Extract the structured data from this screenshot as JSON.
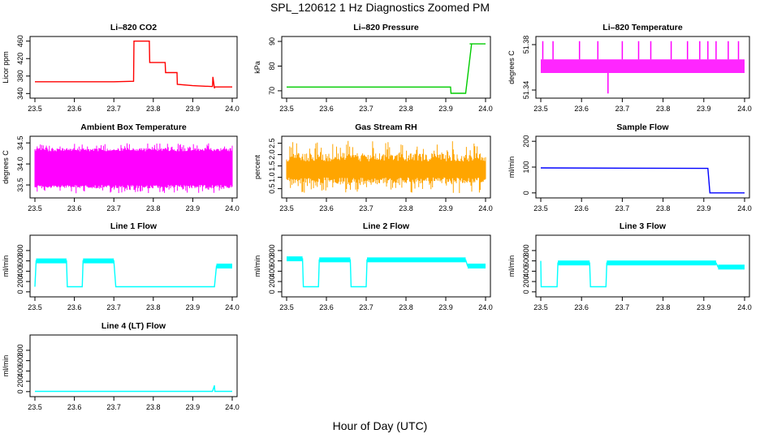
{
  "figure": {
    "title": "SPL_120612  1 Hz Diagnostics Zoomed PM",
    "xlabel": "Hour of Day (UTC)"
  },
  "chart_data": [
    {
      "type": "line",
      "title": "Li–820 CO2",
      "ylabel": "Licor ppm",
      "color": "#ff0000",
      "xlim": [
        23.5,
        24.0
      ],
      "ylim": [
        335,
        465
      ],
      "xticks": [
        "23.5",
        "23.6",
        "23.7",
        "23.8",
        "23.9",
        "24.0"
      ],
      "yticks": [
        340,
        380,
        420,
        460
      ],
      "x": [
        23.5,
        23.6,
        23.7,
        23.75,
        23.751,
        23.79,
        23.791,
        23.83,
        23.831,
        23.86,
        23.861,
        23.9,
        23.95,
        23.951,
        23.955,
        23.956,
        24.0
      ],
      "y": [
        367,
        367,
        367,
        368,
        460,
        460,
        411,
        411,
        388,
        388,
        361,
        358,
        356,
        378,
        352,
        355,
        355
      ]
    },
    {
      "type": "line",
      "title": "Li–820 Pressure",
      "ylabel": "kPa",
      "color": "#00cc00",
      "xlim": [
        23.5,
        24.0
      ],
      "ylim": [
        68,
        91
      ],
      "xticks": [
        "23.5",
        "23.6",
        "23.7",
        "23.8",
        "23.9",
        "24.0"
      ],
      "yticks": [
        70,
        80,
        90
      ],
      "x": [
        23.5,
        23.9,
        23.912,
        23.913,
        23.95,
        23.965,
        23.96,
        24.0
      ],
      "y": [
        71.5,
        71.5,
        71.5,
        69.0,
        69.0,
        89.0,
        89.0,
        89.0
      ]
    },
    {
      "type": "band",
      "title": "Li–820 Temperature",
      "ylabel": "degrees C",
      "color": "#ff00ff",
      "xlim": [
        23.5,
        24.0
      ],
      "ylim": [
        51.335,
        51.385
      ],
      "xticks": [
        "23.5",
        "23.6",
        "23.7",
        "23.8",
        "23.9",
        "24.0"
      ],
      "yticks": [
        51.34,
        51.38
      ],
      "ytick_labels": [
        "51.34",
        "51.38"
      ],
      "band": [
        51.355,
        51.367
      ],
      "spikes_up": [
        23.505,
        23.53,
        23.595,
        23.64,
        23.7,
        23.74,
        23.77,
        23.82,
        23.86,
        23.89,
        23.91,
        23.93,
        23.96,
        23.985
      ],
      "spike_top": 51.383,
      "spike_down": 23.665,
      "spike_bottom": 51.337
    },
    {
      "type": "band",
      "title": "Ambient Box Temperature",
      "ylabel": "degrees C",
      "color": "#ff00ff",
      "xlim": [
        23.5,
        24.0
      ],
      "ylim": [
        33.25,
        34.6
      ],
      "xticks": [
        "23.5",
        "23.6",
        "23.7",
        "23.8",
        "23.9",
        "24.0"
      ],
      "yticks": [
        33.5,
        34.0,
        34.5
      ],
      "ytick_labels": [
        "33.5",
        "34.0",
        "34.5"
      ],
      "band": [
        33.5,
        34.3
      ],
      "noise": [
        33.3,
        34.5
      ]
    },
    {
      "type": "band",
      "title": "Gas Stream RH",
      "ylabel": "percent",
      "color": "#ffa500",
      "xlim": [
        23.5,
        24.0
      ],
      "ylim": [
        0.2,
        2.7
      ],
      "xticks": [
        "23.5",
        "23.6",
        "23.7",
        "23.8",
        "23.9",
        "24.0"
      ],
      "yticks": [
        0.5,
        1.0,
        1.5,
        2.0,
        2.5
      ],
      "ytick_labels": [
        "0.5",
        "1.0",
        "1.5",
        "2.0",
        "2.5"
      ],
      "band": [
        1.0,
        1.7
      ],
      "noise": [
        0.3,
        2.6
      ]
    },
    {
      "type": "line",
      "title": "Sample Flow",
      "ylabel": "ml/min",
      "color": "#0000ff",
      "xlim": [
        23.5,
        24.0
      ],
      "ylim": [
        -10,
        210
      ],
      "xticks": [
        "23.5",
        "23.6",
        "23.7",
        "23.8",
        "23.9",
        "24.0"
      ],
      "yticks": [
        0,
        100,
        200
      ],
      "x": [
        23.5,
        23.91,
        23.915,
        23.93,
        24.0
      ],
      "y": [
        97,
        95,
        0,
        0,
        0
      ]
    },
    {
      "type": "line",
      "title": "Line 1 Flow",
      "ylabel": "ml/min",
      "color": "#00ffff",
      "xlim": [
        23.5,
        24.0
      ],
      "ylim": [
        -50,
        1050
      ],
      "xticks": [
        "23.5",
        "23.6",
        "23.7",
        "23.8",
        "23.9",
        "24.0"
      ],
      "yticks": [
        0,
        200,
        400,
        600,
        800
      ],
      "x": [
        23.5,
        23.503,
        23.58,
        23.582,
        23.62,
        23.622,
        23.7,
        23.705,
        23.955,
        23.96,
        24.0
      ],
      "y": [
        100,
        600,
        600,
        100,
        100,
        600,
        600,
        100,
        100,
        500,
        500
      ]
    },
    {
      "type": "line",
      "title": "Line 2 Flow",
      "ylabel": "ml/min",
      "color": "#00ffff",
      "xlim": [
        23.5,
        24.0
      ],
      "ylim": [
        -50,
        1050
      ],
      "xticks": [
        "23.5",
        "23.6",
        "23.7",
        "23.8",
        "23.9",
        "24.0"
      ],
      "yticks": [
        0,
        200,
        400,
        600,
        800
      ],
      "x": [
        23.5,
        23.54,
        23.542,
        23.58,
        23.582,
        23.66,
        23.662,
        23.7,
        23.702,
        23.95,
        23.955,
        24.0
      ],
      "y": [
        640,
        640,
        100,
        100,
        620,
        620,
        100,
        100,
        620,
        620,
        500,
        500
      ]
    },
    {
      "type": "line",
      "title": "Line 3 Flow",
      "ylabel": "ml/min",
      "color": "#00ffff",
      "xlim": [
        23.5,
        24.0
      ],
      "ylim": [
        -50,
        1050
      ],
      "xticks": [
        "23.5",
        "23.6",
        "23.7",
        "23.8",
        "23.9",
        "24.0"
      ],
      "yticks": [
        0,
        200,
        400,
        600,
        800
      ],
      "x": [
        23.5,
        23.501,
        23.54,
        23.542,
        23.62,
        23.622,
        23.66,
        23.662,
        23.93,
        23.935,
        24.0
      ],
      "y": [
        600,
        100,
        100,
        560,
        560,
        100,
        100,
        560,
        560,
        480,
        480
      ]
    },
    {
      "type": "line",
      "title": "Line 4 (LT) Flow",
      "ylabel": "ml/min",
      "color": "#00ffff",
      "xlim": [
        23.5,
        24.0
      ],
      "ylim": [
        -50,
        1050
      ],
      "xticks": [
        "23.5",
        "23.6",
        "23.7",
        "23.8",
        "23.9",
        "24.0"
      ],
      "yticks": [
        0,
        200,
        400,
        600,
        800
      ],
      "x": [
        23.5,
        23.95,
        23.955,
        23.956,
        23.957,
        24.0
      ],
      "y": [
        5,
        5,
        120,
        5,
        5,
        5
      ]
    }
  ]
}
